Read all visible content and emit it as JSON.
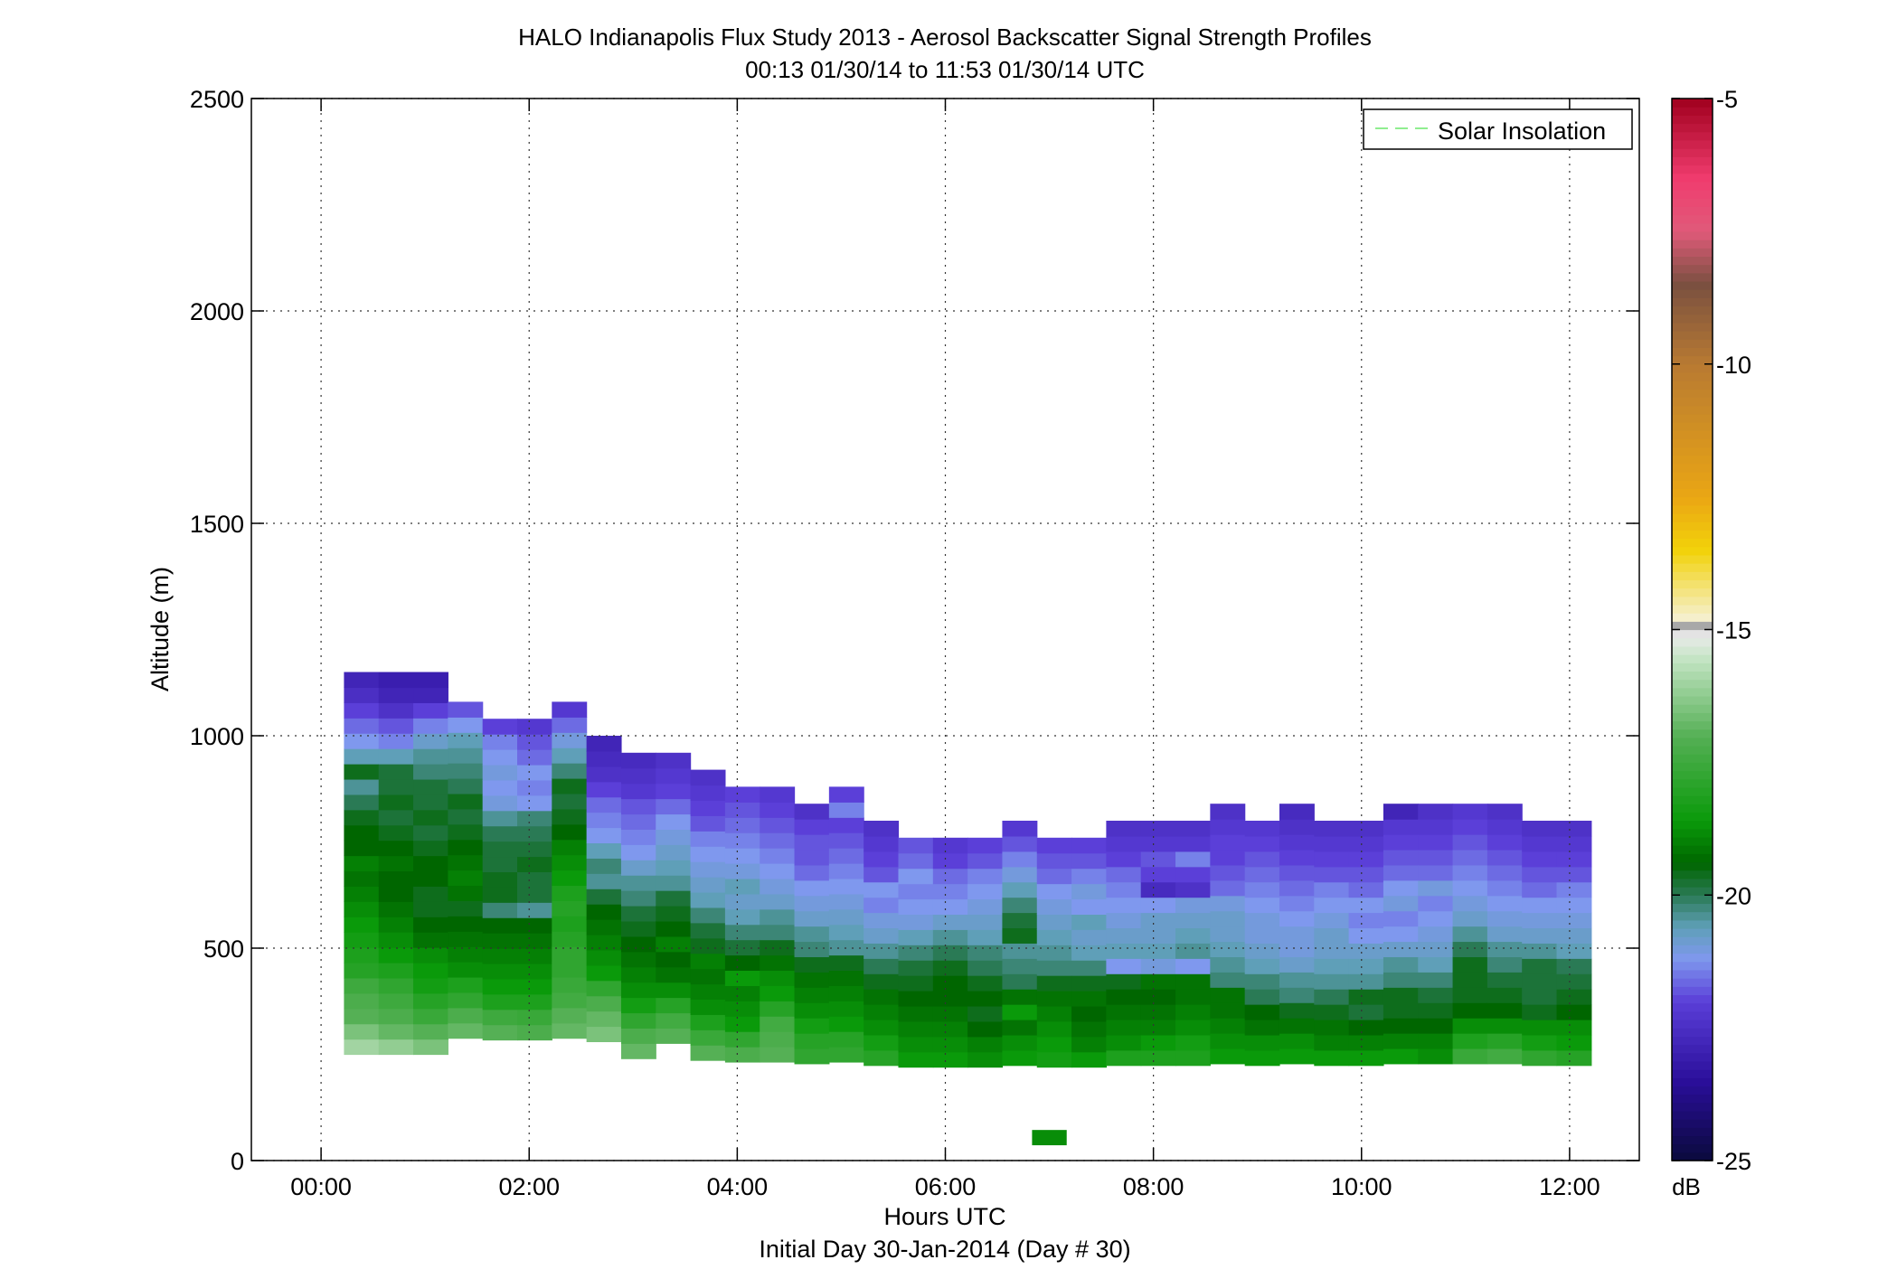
{
  "chart_data": {
    "type": "heatmap",
    "title": "HALO Indianapolis Flux Study 2013 - Aerosol Backscatter Signal Strength Profiles",
    "subtitle": "00:13 01/30/14 to 11:53 01/30/14  UTC",
    "xlabel": "Hours UTC",
    "xlabel2": "Initial Day 30-Jan-2014 (Day # 30)",
    "ylabel": "Altitude (m)",
    "xlim": [
      -0.67,
      12.67
    ],
    "ylim": [
      0,
      2500
    ],
    "x_ticks": [
      0,
      2,
      4,
      6,
      8,
      10,
      12
    ],
    "x_tick_labels": [
      "00:00",
      "02:00",
      "04:00",
      "06:00",
      "08:00",
      "10:00",
      "12:00"
    ],
    "y_ticks": [
      0,
      500,
      1000,
      1500,
      2000,
      2500
    ],
    "y_tick_labels": [
      "0",
      "500",
      "1000",
      "1500",
      "2000",
      "2500"
    ],
    "grid": true,
    "legend": {
      "position": "top-right",
      "entries": [
        {
          "label": "Solar Insolation",
          "color": "#90ee90",
          "style": "dashed"
        }
      ]
    },
    "colorbar": {
      "label": "dB",
      "range": [
        -25,
        -5
      ],
      "ticks": [
        -25,
        -20,
        -15,
        -10,
        -5
      ],
      "tick_labels": [
        "-25",
        "-20",
        "-15",
        "-10",
        "-5"
      ],
      "stops": [
        {
          "v": -25.0,
          "c": "#0a0a3c"
        },
        {
          "v": -23.5,
          "c": "#2a0e9a"
        },
        {
          "v": -22.0,
          "c": "#5b3fd8"
        },
        {
          "v": -21.2,
          "c": "#7f98ee"
        },
        {
          "v": -20.6,
          "c": "#5f9fb8"
        },
        {
          "v": -20.0,
          "c": "#2a7a55"
        },
        {
          "v": -19.4,
          "c": "#006600"
        },
        {
          "v": -18.6,
          "c": "#0a9a0a"
        },
        {
          "v": -17.0,
          "c": "#55b055"
        },
        {
          "v": -15.5,
          "c": "#c8e6c8"
        },
        {
          "v": -15.1,
          "c": "#ebebeb"
        },
        {
          "v": -14.9,
          "c": "#a0a0a0"
        },
        {
          "v": -14.8,
          "c": "#f5f0d0"
        },
        {
          "v": -13.5,
          "c": "#f2d20a"
        },
        {
          "v": -12.5,
          "c": "#eaa614"
        },
        {
          "v": -10.0,
          "c": "#b87a32"
        },
        {
          "v": -8.5,
          "c": "#7a5040"
        },
        {
          "v": -7.5,
          "c": "#e05a7a"
        },
        {
          "v": -6.5,
          "c": "#f03c6e"
        },
        {
          "v": -5.0,
          "c": "#a0001e"
        }
      ]
    },
    "time_step_hours": 0.333,
    "altitude_step_m": 36,
    "x_start_hours": 0.22,
    "columns": [
      {
        "top": 1150,
        "values": [
          -16.0,
          -16.5,
          -17.0,
          -17.2,
          -17.5,
          -18.0,
          -18.2,
          -18.4,
          -18.6,
          -18.8,
          -19.0,
          -19.2,
          -19.0,
          -19.4,
          -19.4,
          -19.6,
          -20.0,
          -20.4,
          -19.6,
          -20.6,
          -21.2,
          -21.6,
          -22.0,
          -22.5,
          -22.8
        ]
      },
      {
        "top": 1150,
        "values": [
          -16.2,
          -16.8,
          -17.2,
          -17.5,
          -17.8,
          -18.2,
          -18.6,
          -18.8,
          -19.0,
          -19.2,
          -19.4,
          -19.4,
          -19.2,
          -19.4,
          -19.6,
          -19.8,
          -19.6,
          -19.8,
          -19.8,
          -20.6,
          -21.4,
          -21.8,
          -22.4,
          -22.8,
          -23.0
        ]
      },
      {
        "top": 1150,
        "values": [
          -16.5,
          -17.0,
          -17.6,
          -18.0,
          -18.4,
          -18.6,
          -18.8,
          -19.2,
          -19.4,
          -19.6,
          -19.6,
          -19.4,
          -19.4,
          -19.6,
          -19.8,
          -19.6,
          -19.8,
          -19.8,
          -20.2,
          -20.4,
          -20.8,
          -21.4,
          -22.0,
          -22.8,
          -23.0
        ]
      },
      {
        "top": 1080,
        "values": [
          -16.8,
          -17.2,
          -17.8,
          -18.2,
          -18.8,
          -19.0,
          -19.2,
          -19.4,
          -19.6,
          -19.2,
          -19.0,
          -19.2,
          -19.4,
          -19.6,
          -19.8,
          -19.6,
          -20.0,
          -20.2,
          -20.4,
          -20.6,
          -21.2,
          -21.8
        ]
      },
      {
        "top": 1040,
        "values": [
          -17.0,
          -17.5,
          -18.2,
          -18.6,
          -18.8,
          -19.0,
          -19.2,
          -19.4,
          -20.2,
          -19.6,
          -19.6,
          -19.8,
          -19.8,
          -20.0,
          -20.4,
          -21.0,
          -21.2,
          -21.0,
          -21.2,
          -21.4,
          -22.0
        ]
      },
      {
        "top": 1040,
        "values": [
          -17.2,
          -17.6,
          -18.2,
          -18.6,
          -18.8,
          -19.0,
          -19.2,
          -19.4,
          -20.4,
          -19.8,
          -19.8,
          -19.6,
          -19.8,
          -20.0,
          -20.2,
          -21.2,
          -21.4,
          -21.2,
          -21.6,
          -21.8,
          -22.2
        ]
      },
      {
        "top": 1080,
        "values": [
          -16.8,
          -17.0,
          -17.4,
          -17.6,
          -17.8,
          -17.8,
          -18.0,
          -18.2,
          -18.0,
          -18.2,
          -18.6,
          -18.8,
          -19.0,
          -19.4,
          -19.6,
          -19.8,
          -19.6,
          -20.2,
          -20.6,
          -21.0,
          -21.6,
          -22.2
        ]
      },
      {
        "top": 1000,
        "values": [
          -16.5,
          -16.8,
          -17.2,
          -17.8,
          -18.6,
          -18.8,
          -19.0,
          -19.2,
          -19.4,
          -19.8,
          -20.4,
          -20.2,
          -20.6,
          -21.2,
          -21.4,
          -21.6,
          -22.0,
          -22.4,
          -22.6,
          -22.8
        ]
      },
      {
        "top": 960,
        "values": [
          -16.8,
          -17.2,
          -17.8,
          -18.4,
          -18.8,
          -19.0,
          -19.2,
          -19.4,
          -19.6,
          -19.8,
          -20.2,
          -20.4,
          -20.8,
          -21.2,
          -21.4,
          -21.6,
          -21.8,
          -22.2,
          -22.4,
          -22.6
        ]
      },
      {
        "top": 960,
        "values": [
          -17.0,
          -17.4,
          -18.0,
          -18.8,
          -19.2,
          -19.4,
          -19.0,
          -19.4,
          -19.6,
          -19.8,
          -20.4,
          -20.6,
          -20.8,
          -21.0,
          -21.2,
          -21.6,
          -22.0,
          -22.2,
          -22.4
        ]
      },
      {
        "top": 920,
        "values": [
          -17.0,
          -17.6,
          -18.2,
          -18.8,
          -19.0,
          -19.2,
          -19.0,
          -19.6,
          -19.8,
          -20.2,
          -20.6,
          -20.8,
          -21.0,
          -21.2,
          -21.4,
          -21.8,
          -22.0,
          -22.2,
          -22.4
        ]
      },
      {
        "top": 880,
        "values": [
          -17.2,
          -17.8,
          -18.6,
          -18.8,
          -19.0,
          -18.6,
          -19.4,
          -19.8,
          -20.2,
          -20.6,
          -20.8,
          -20.6,
          -21.0,
          -21.2,
          -21.4,
          -21.6,
          -21.8,
          -22.0
        ]
      },
      {
        "top": 880,
        "values": [
          -17.0,
          -17.2,
          -17.4,
          -18.0,
          -18.6,
          -18.8,
          -19.2,
          -19.6,
          -20.2,
          -20.4,
          -20.8,
          -21.0,
          -21.2,
          -21.4,
          -21.6,
          -21.8,
          -22.0,
          -22.2
        ]
      },
      {
        "top": 840,
        "values": [
          -17.8,
          -18.0,
          -18.4,
          -18.8,
          -19.0,
          -19.2,
          -19.6,
          -20.2,
          -20.4,
          -20.8,
          -21.0,
          -21.2,
          -21.6,
          -21.8,
          -21.8,
          -22.0,
          -22.4
        ]
      },
      {
        "top": 880,
        "values": [
          -17.8,
          -18.0,
          -18.6,
          -18.8,
          -19.0,
          -19.2,
          -19.6,
          -20.4,
          -20.6,
          -20.8,
          -21.0,
          -21.2,
          -21.4,
          -21.6,
          -21.8,
          -22.0,
          -21.4,
          -22.0
        ]
      },
      {
        "top": 800,
        "values": [
          -18.0,
          -18.4,
          -18.8,
          -19.0,
          -19.2,
          -19.6,
          -20.0,
          -20.4,
          -20.8,
          -21.0,
          -21.4,
          -21.2,
          -21.8,
          -22.0,
          -22.2,
          -22.4
        ]
      },
      {
        "top": 760,
        "values": [
          -18.6,
          -18.8,
          -19.0,
          -19.2,
          -19.4,
          -19.6,
          -19.8,
          -20.2,
          -20.6,
          -21.0,
          -21.2,
          -21.4,
          -21.2,
          -21.6,
          -21.8
        ]
      },
      {
        "top": 760,
        "values": [
          -18.6,
          -18.8,
          -19.0,
          -19.2,
          -19.4,
          -19.4,
          -19.6,
          -20.0,
          -20.4,
          -20.8,
          -21.2,
          -21.4,
          -21.6,
          -22.0,
          -22.2
        ]
      },
      {
        "top": 760,
        "values": [
          -18.8,
          -19.0,
          -19.4,
          -19.6,
          -19.4,
          -19.6,
          -20.0,
          -20.2,
          -20.6,
          -20.8,
          -21.0,
          -21.2,
          -21.4,
          -21.8,
          -22.0
        ]
      },
      {
        "top": 800,
        "values": [
          -18.6,
          -18.8,
          -19.2,
          -18.6,
          -19.2,
          -20.0,
          -20.2,
          -20.4,
          -19.6,
          -19.8,
          -20.2,
          -20.6,
          -21.0,
          -21.4,
          -21.8,
          -22.2
        ]
      },
      {
        "top": 760,
        "values": [
          -18.4,
          -18.6,
          -18.8,
          -19.0,
          -19.2,
          -19.6,
          -20.2,
          -20.4,
          -20.6,
          -20.8,
          -21.0,
          -21.2,
          -21.6,
          -21.8,
          -22.0
        ]
      },
      {
        "top": 760,
        "values": [
          -18.6,
          -19.0,
          -19.2,
          -19.4,
          -19.2,
          -19.6,
          -20.2,
          -20.6,
          -20.8,
          -20.6,
          -21.2,
          -21.0,
          -21.4,
          -21.8,
          -22.0
        ]
      },
      {
        "top": 800,
        "values": [
          -18.2,
          -18.8,
          -19.0,
          -19.2,
          -19.4,
          -19.6,
          -21.2,
          -20.6,
          -20.8,
          -21.0,
          -21.2,
          -21.4,
          -21.6,
          -22.0,
          -22.2,
          -22.4
        ]
      },
      {
        "top": 800,
        "values": [
          -18.2,
          -18.6,
          -19.0,
          -19.2,
          -19.4,
          -19.2,
          -21.0,
          -20.6,
          -20.8,
          -20.8,
          -21.2,
          -22.6,
          -22.0,
          -21.8,
          -22.2,
          -22.4
        ]
      },
      {
        "top": 800,
        "values": [
          -18.2,
          -18.4,
          -18.8,
          -19.0,
          -19.2,
          -19.2,
          -21.2,
          -20.4,
          -20.6,
          -20.8,
          -21.0,
          -22.4,
          -22.0,
          -21.4,
          -22.2,
          -22.4
        ]
      },
      {
        "top": 840,
        "values": [
          -18.6,
          -18.8,
          -19.0,
          -19.2,
          -19.2,
          -20.2,
          -20.4,
          -20.6,
          -20.8,
          -20.8,
          -21.0,
          -21.6,
          -21.8,
          -22.0,
          -22.0,
          -22.2,
          -22.4
        ]
      },
      {
        "top": 800,
        "values": [
          -18.6,
          -18.8,
          -19.2,
          -19.4,
          -20.0,
          -20.2,
          -20.6,
          -20.8,
          -21.0,
          -21.0,
          -21.2,
          -21.4,
          -21.6,
          -21.8,
          -22.0,
          -22.2
        ]
      },
      {
        "top": 840,
        "values": [
          -18.6,
          -18.8,
          -19.2,
          -19.6,
          -20.2,
          -20.4,
          -20.8,
          -21.0,
          -21.0,
          -21.2,
          -21.4,
          -21.6,
          -21.8,
          -22.0,
          -22.2,
          -22.4,
          -22.6
        ]
      },
      {
        "top": 800,
        "values": [
          -18.6,
          -19.0,
          -19.2,
          -19.6,
          -20.0,
          -20.4,
          -20.6,
          -20.8,
          -20.8,
          -21.0,
          -21.2,
          -21.4,
          -21.8,
          -22.0,
          -22.2,
          -22.4
        ]
      },
      {
        "top": 800,
        "values": [
          -18.6,
          -19.0,
          -19.4,
          -19.8,
          -19.6,
          -20.4,
          -20.6,
          -20.8,
          -21.2,
          -21.4,
          -21.2,
          -21.6,
          -21.8,
          -22.0,
          -22.2,
          -22.4
        ]
      },
      {
        "top": 840,
        "values": [
          -18.6,
          -19.0,
          -19.4,
          -19.6,
          -19.6,
          -20.2,
          -20.4,
          -20.8,
          -21.2,
          -21.4,
          -21.0,
          -21.2,
          -21.6,
          -21.8,
          -22.0,
          -22.2,
          -22.8
        ]
      },
      {
        "top": 840,
        "values": [
          -18.8,
          -19.0,
          -19.4,
          -19.6,
          -19.8,
          -20.2,
          -20.6,
          -20.8,
          -21.0,
          -21.2,
          -21.4,
          -21.0,
          -21.6,
          -21.8,
          -22.0,
          -22.2,
          -22.4
        ]
      },
      {
        "top": 840,
        "values": [
          -17.6,
          -18.2,
          -18.8,
          -19.4,
          -19.6,
          -19.6,
          -19.6,
          -20.0,
          -20.4,
          -20.8,
          -21.0,
          -21.2,
          -21.4,
          -21.6,
          -21.8,
          -22.0,
          -22.2
        ]
      },
      {
        "top": 840,
        "values": [
          -17.4,
          -18.0,
          -18.8,
          -19.4,
          -19.6,
          -19.8,
          -20.2,
          -20.4,
          -20.8,
          -21.0,
          -21.2,
          -21.4,
          -21.6,
          -21.8,
          -22.0,
          -22.2,
          -22.4
        ]
      },
      {
        "top": 800,
        "values": [
          -17.8,
          -18.4,
          -18.8,
          -19.6,
          -19.8,
          -19.8,
          -19.8,
          -20.4,
          -20.8,
          -21.0,
          -21.2,
          -21.6,
          -21.8,
          -22.0,
          -22.2,
          -22.4
        ]
      },
      {
        "top": 800,
        "values": [
          -18.0,
          -18.6,
          -18.8,
          -19.4,
          -19.6,
          -19.8,
          -20.0,
          -20.6,
          -20.8,
          -21.0,
          -21.2,
          -21.4,
          -21.8,
          -22.0,
          -22.2,
          -22.4
        ]
      }
    ],
    "extra_cells": [
      {
        "x_hours": 7.0,
        "bottom": 36,
        "top": 72,
        "value": -18.8
      }
    ]
  }
}
